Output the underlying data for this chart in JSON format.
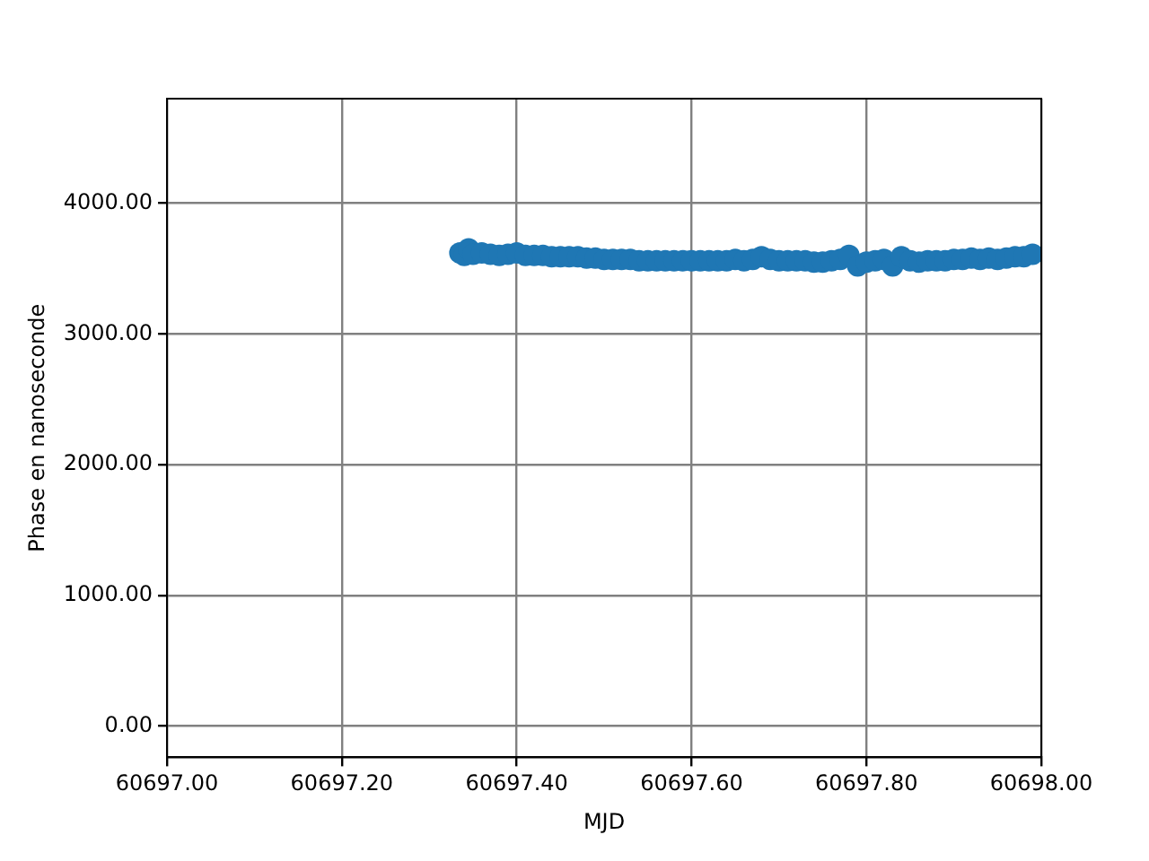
{
  "chart_data": {
    "type": "scatter",
    "xlabel": "MJD",
    "ylabel": "Phase en nanoseconde",
    "xlim": [
      60697.0,
      60698.0
    ],
    "xticks": [
      {
        "value": 60697.0,
        "label": "60697.00"
      },
      {
        "value": 60697.2,
        "label": "60697.20"
      },
      {
        "value": 60697.4,
        "label": "60697.40"
      },
      {
        "value": 60697.6,
        "label": "60697.60"
      },
      {
        "value": 60697.8,
        "label": "60697.80"
      },
      {
        "value": 60698.0,
        "label": "60698.00"
      }
    ],
    "ylim": [
      -240,
      4800
    ],
    "yticks": [
      {
        "value": 0,
        "label": "0.00"
      },
      {
        "value": 1000,
        "label": "1000.00"
      },
      {
        "value": 2000,
        "label": "2000.00"
      },
      {
        "value": 3000,
        "label": "3000.00"
      },
      {
        "value": 4000,
        "label": "4000.00"
      }
    ],
    "grid": true,
    "legend": false,
    "marker": "circle",
    "series": [
      {
        "color": "#1f77b4",
        "x": [
          60697.335,
          60697.34,
          60697.345,
          60697.35,
          60697.36,
          60697.37,
          60697.38,
          60697.39,
          60697.4,
          60697.41,
          60697.42,
          60697.43,
          60697.44,
          60697.45,
          60697.46,
          60697.47,
          60697.48,
          60697.49,
          60697.5,
          60697.51,
          60697.52,
          60697.53,
          60697.54,
          60697.55,
          60697.56,
          60697.57,
          60697.58,
          60697.59,
          60697.6,
          60697.61,
          60697.62,
          60697.63,
          60697.64,
          60697.65,
          60697.66,
          60697.67,
          60697.68,
          60697.69,
          60697.7,
          60697.71,
          60697.72,
          60697.73,
          60697.74,
          60697.75,
          60697.76,
          60697.77,
          60697.78,
          60697.79,
          60697.8,
          60697.81,
          60697.82,
          60697.83,
          60697.84,
          60697.85,
          60697.86,
          60697.87,
          60697.88,
          60697.89,
          60697.9,
          60697.91,
          60697.92,
          60697.93,
          60697.94,
          60697.95,
          60697.96,
          60697.97,
          60697.98,
          60697.99
        ],
        "values": [
          3620,
          3600,
          3650,
          3610,
          3620,
          3610,
          3600,
          3610,
          3620,
          3600,
          3600,
          3600,
          3590,
          3590,
          3590,
          3590,
          3580,
          3580,
          3570,
          3570,
          3570,
          3570,
          3560,
          3560,
          3560,
          3560,
          3560,
          3560,
          3560,
          3560,
          3560,
          3560,
          3560,
          3570,
          3560,
          3570,
          3590,
          3570,
          3560,
          3560,
          3560,
          3560,
          3550,
          3550,
          3560,
          3570,
          3600,
          3520,
          3550,
          3560,
          3570,
          3520,
          3590,
          3560,
          3550,
          3560,
          3560,
          3560,
          3570,
          3570,
          3580,
          3570,
          3580,
          3570,
          3580,
          3590,
          3590,
          3610
        ]
      }
    ]
  }
}
